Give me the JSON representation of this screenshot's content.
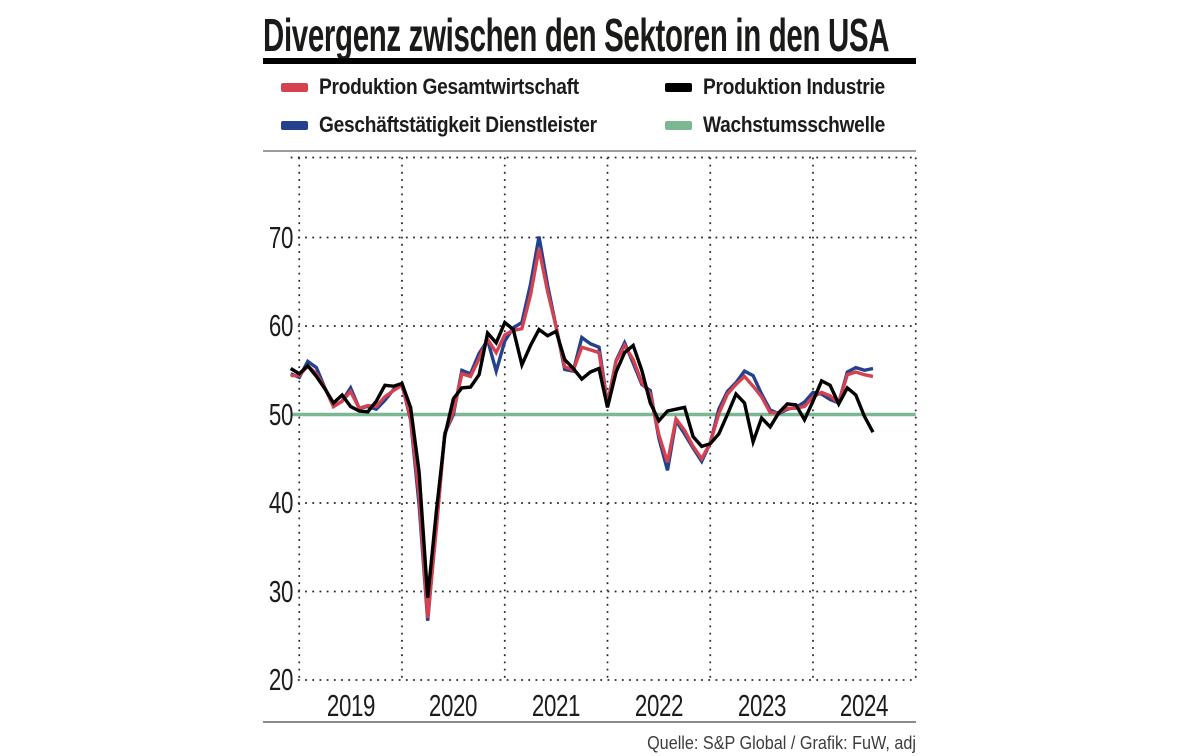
{
  "title": "Divergenz zwischen den Sektoren in den USA",
  "source": "Quelle: S&P Global / Grafik: FuW, adj",
  "colors": {
    "composite": "#d5424f",
    "services": "#24418e",
    "industry": "#000000",
    "threshold": "#7cb794",
    "grid_dots": "#262626",
    "rule_thick": "#000000",
    "rule_thin": "#9c9c9c"
  },
  "legend": [
    {
      "label": "Produktion Gesamtwirtschaft",
      "series": "composite",
      "color": "#d5424f"
    },
    {
      "label": "Geschäftstätigkeit Dienstleister",
      "series": "services",
      "color": "#24418e"
    },
    {
      "label": "Produktion Industrie",
      "series": "industry",
      "color": "#000000"
    },
    {
      "label": "Wachstumsschwelle",
      "series": "threshold",
      "color": "#7cb794"
    }
  ],
  "chart_data": {
    "type": "line",
    "title": "Divergenz zwischen den Sektoren in den USA",
    "x_start": "2018-12",
    "x_end": "2024-08",
    "frequency": "monthly",
    "ylim": [
      20,
      80
    ],
    "y_ticks": [
      20,
      30,
      40,
      50,
      60,
      70
    ],
    "x_tick_years": [
      "2019",
      "2020",
      "2021",
      "2022",
      "2023",
      "2024"
    ],
    "grid": "dotted",
    "legend_position": "top",
    "growth_threshold": 50,
    "series": [
      {
        "name": "Produktion Gesamtwirtschaft",
        "key": "composite",
        "color": "#d5424f",
        "values": [
          54.4,
          54.4,
          55.5,
          54.6,
          53.0,
          50.9,
          51.5,
          52.6,
          50.7,
          51.0,
          50.9,
          52.0,
          52.7,
          53.3,
          49.6,
          40.9,
          27.0,
          37.0,
          47.9,
          50.3,
          54.6,
          54.3,
          56.3,
          58.5,
          57.0,
          59.0,
          59.5,
          59.7,
          63.5,
          68.7,
          63.9,
          59.9,
          55.4,
          55.0,
          57.6,
          57.3,
          57.0,
          51.1,
          56.0,
          57.8,
          56.2,
          53.6,
          52.3,
          47.7,
          44.6,
          49.5,
          48.2,
          46.4,
          45.0,
          46.8,
          50.1,
          52.3,
          53.4,
          54.3,
          53.2,
          52.0,
          50.2,
          50.2,
          50.7,
          50.7,
          50.9,
          52.0,
          52.5,
          52.1,
          51.3,
          54.5,
          54.8,
          54.5,
          54.3
        ]
      },
      {
        "name": "Geschäftstätigkeit Dienstleister",
        "key": "services",
        "color": "#24418e",
        "values": [
          54.6,
          54.2,
          56.0,
          55.3,
          53.0,
          50.9,
          51.5,
          53.0,
          50.7,
          50.9,
          50.6,
          51.6,
          52.8,
          53.4,
          49.4,
          39.8,
          26.7,
          37.5,
          47.9,
          50.0,
          55.0,
          54.6,
          56.9,
          58.4,
          54.9,
          58.3,
          59.8,
          60.4,
          64.7,
          70.1,
          64.6,
          59.9,
          55.1,
          54.9,
          58.7,
          58.0,
          57.6,
          51.2,
          56.1,
          58.1,
          55.8,
          53.4,
          52.7,
          47.3,
          43.7,
          49.3,
          47.8,
          46.2,
          44.7,
          46.8,
          50.6,
          52.6,
          53.6,
          54.9,
          54.4,
          52.3,
          50.5,
          50.1,
          50.6,
          50.8,
          51.4,
          52.5,
          52.3,
          51.7,
          51.3,
          54.8,
          55.3,
          55.0,
          55.2
        ]
      },
      {
        "name": "Produktion Industrie",
        "key": "industry",
        "color": "#000000",
        "values": [
          55.2,
          54.6,
          55.5,
          54.3,
          52.9,
          51.3,
          52.2,
          50.9,
          50.4,
          50.3,
          51.5,
          53.3,
          53.2,
          53.5,
          50.8,
          43.5,
          29.3,
          39.0,
          47.6,
          51.8,
          53.0,
          53.1,
          54.5,
          59.2,
          58.1,
          60.4,
          59.6,
          55.6,
          57.8,
          59.6,
          58.9,
          59.4,
          56.2,
          55.2,
          54.0,
          54.8,
          55.2,
          50.8,
          54.8,
          57.0,
          57.8,
          55.0,
          51.3,
          49.3,
          50.4,
          50.6,
          50.8,
          47.5,
          46.4,
          46.7,
          47.8,
          50.0,
          52.3,
          51.3,
          46.9,
          49.6,
          48.6,
          50.2,
          51.2,
          51.1,
          49.4,
          51.5,
          53.8,
          53.3,
          51.2,
          53.0,
          52.2,
          49.8,
          48.0
        ]
      }
    ]
  }
}
